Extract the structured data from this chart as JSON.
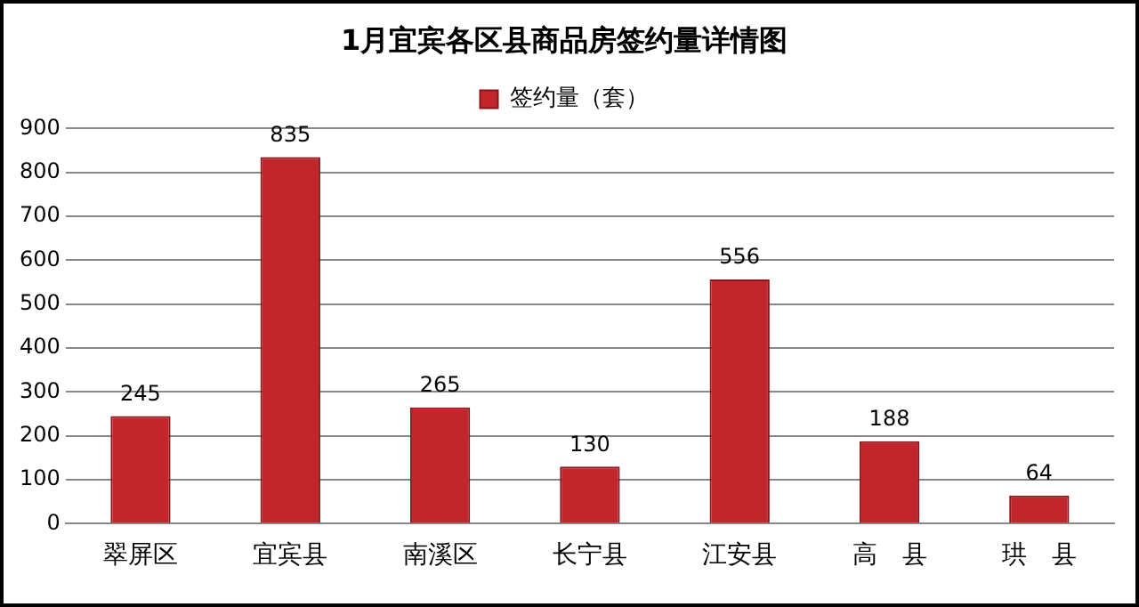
{
  "chart_data": {
    "type": "bar",
    "title": "1月宜宾各区县商品房签约量详情图",
    "categories": [
      "翠屏区",
      "宜宾县",
      "南溪区",
      "长宁县",
      "江安县",
      "高　县",
      "珙　县"
    ],
    "series": [
      {
        "name": "签约量（套）",
        "color": "#c0262b",
        "values": [
          245,
          835,
          265,
          130,
          556,
          188,
          64
        ]
      }
    ],
    "ylim": [
      0,
      900
    ],
    "yticks": [
      0,
      100,
      200,
      300,
      400,
      500,
      600,
      700,
      800,
      900
    ],
    "grid": "y",
    "legend": "top",
    "data_labels": true
  }
}
